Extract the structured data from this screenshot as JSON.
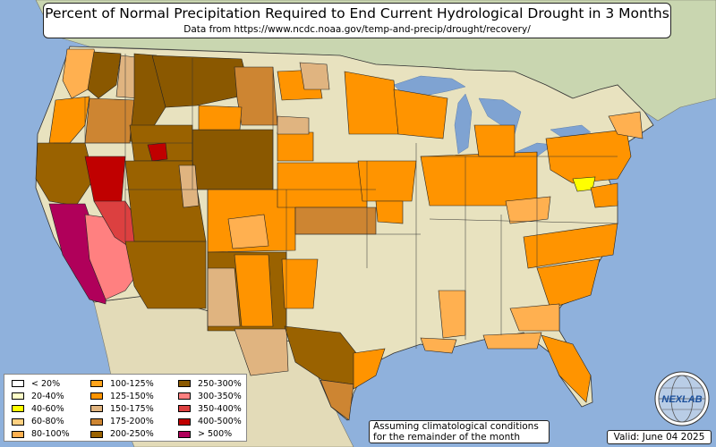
{
  "title": "Percent of Normal Precipitation Required to End Current Hydrological Drought in 3 Months",
  "subtitle": "Data from https://www.ncdc.noaa.gov/temp-and-precip/drought/recovery/",
  "legend": [
    {
      "label": "< 20%",
      "color": "#ffffff"
    },
    {
      "label": "20-40%",
      "color": "#ffffc8"
    },
    {
      "label": "40-60%",
      "color": "#ffff00"
    },
    {
      "label": "60-80%",
      "color": "#ffd080"
    },
    {
      "label": "80-100%",
      "color": "#ffb050"
    },
    {
      "label": "100-125%",
      "color": "#ffa31a"
    },
    {
      "label": "125-150%",
      "color": "#ff9400"
    },
    {
      "label": "150-175%",
      "color": "#e0b480"
    },
    {
      "label": "175-200%",
      "color": "#cd8532"
    },
    {
      "label": "200-250%",
      "color": "#9a6200"
    },
    {
      "label": "250-300%",
      "color": "#8a5800"
    },
    {
      "label": "300-350%",
      "color": "#ff8080"
    },
    {
      "label": "350-400%",
      "color": "#dc4040"
    },
    {
      "label": "400-500%",
      "color": "#c00000"
    },
    {
      "label": "> 500%",
      "color": "#b0005a"
    }
  ],
  "note": {
    "line1": "Assuming climatological conditions",
    "line2": "for the remainder of the month"
  },
  "valid": "Valid: June 04 2025",
  "logo": {
    "text": "NEXLAB",
    "icon": "globe-logo-icon"
  },
  "colors": {
    "ocean": "#8fb1dc",
    "land": "#e9e4c0",
    "mexico": "#e3dbb8",
    "canada": "#c7d7b0",
    "lakes": "#7fa3d2"
  }
}
